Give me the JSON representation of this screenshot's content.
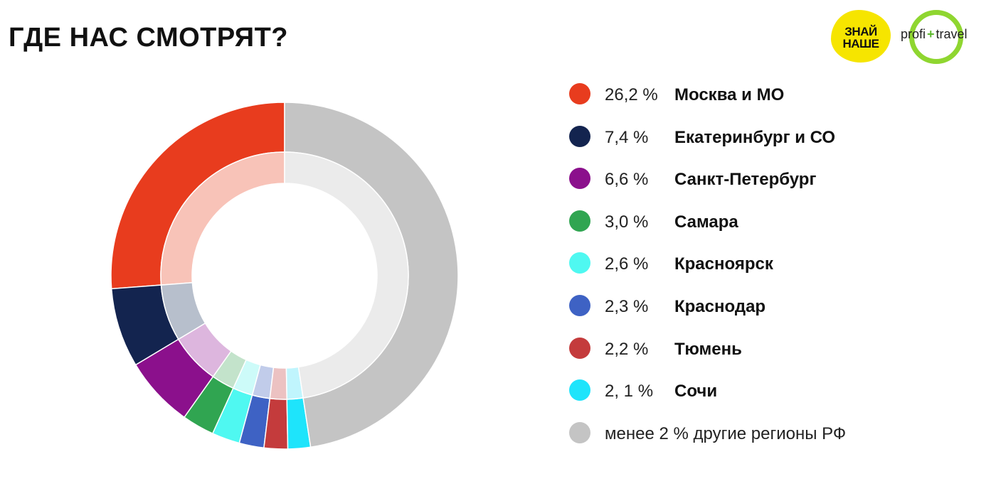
{
  "header": {
    "title": "ГДЕ НАС СМОТРЯТ?"
  },
  "logos": {
    "znai_line1": "ЗНАЙ",
    "znai_line2": "НАШЕ",
    "profi_left": "profi",
    "profi_plus": "+",
    "profi_right": "travel",
    "colors": {
      "znai": "#f6e500",
      "profi_ring": "#8fd630"
    }
  },
  "chart_data": {
    "type": "pie",
    "variant": "donut",
    "start": "12 o'clock, counter-clockwise",
    "slices": [
      {
        "pct_label": "26,2 %",
        "name": "Москва и МО",
        "value": 26.2,
        "color": "#e83c1e",
        "inner_color": "#f8c3b8"
      },
      {
        "pct_label": "7,4 %",
        "name": "Екатеринбург и СО",
        "value": 7.4,
        "color": "#13244f",
        "inner_color": "#b7bfcc"
      },
      {
        "pct_label": "6,6 %",
        "name": "Санкт-Петербург",
        "value": 6.6,
        "color": "#8b108c",
        "inner_color": "#ddb6de"
      },
      {
        "pct_label": "3,0 %",
        "name": "Самара",
        "value": 3.0,
        "color": "#30a551",
        "inner_color": "#c3e3cb"
      },
      {
        "pct_label": "2,6 %",
        "name": "Красноярск",
        "value": 2.6,
        "color": "#4ff8f1",
        "inner_color": "#cdfbf9"
      },
      {
        "pct_label": "2,3 %",
        "name": "Краснодар",
        "value": 2.3,
        "color": "#3e62c4",
        "inner_color": "#c1ccea"
      },
      {
        "pct_label": "2,2 %",
        "name": "Тюмень",
        "value": 2.2,
        "color": "#c43b3c",
        "inner_color": "#ecc2c2"
      },
      {
        "pct_label": "2, 1 %",
        "name": "Сочи",
        "value": 2.1,
        "color": "#1ee4fb",
        "inner_color": "#c0f5fd"
      },
      {
        "pct_label": "менее 2 %",
        "name": "другие регионы РФ",
        "value": 47.6,
        "color": "#c4c4c4",
        "inner_color": "#ebebeb"
      }
    ]
  }
}
